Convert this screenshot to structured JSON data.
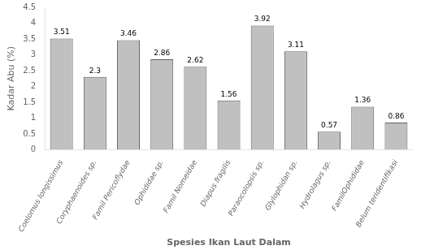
{
  "chart_data": {
    "type": "bar",
    "categories": [
      "Coelomus longissimus",
      "Coryphaenoides sp.",
      "Famil Pericoflydae",
      "Ophididae sp.",
      "Famil Nomeidae",
      "Diapus fragilis",
      "Paraocolopsis sp.",
      "Glylophidan sp.",
      "Hydrolagus sp.",
      "FamilOphididae",
      "Belum teridentifikasi"
    ],
    "values": [
      3.51,
      2.3,
      3.46,
      2.86,
      2.62,
      1.56,
      3.92,
      3.11,
      0.57,
      1.36,
      0.86
    ],
    "color": "#c0c0c0",
    "xlabel": "Spesies Ikan Laut Dalam",
    "ylabel": "Kadar Abu (%)",
    "ylim": [
      0,
      4.5
    ],
    "yticks": [
      0,
      0.5,
      1,
      1.5,
      2,
      2.5,
      3,
      3.5,
      4,
      4.5
    ],
    "grid": false,
    "data_labels": true
  }
}
